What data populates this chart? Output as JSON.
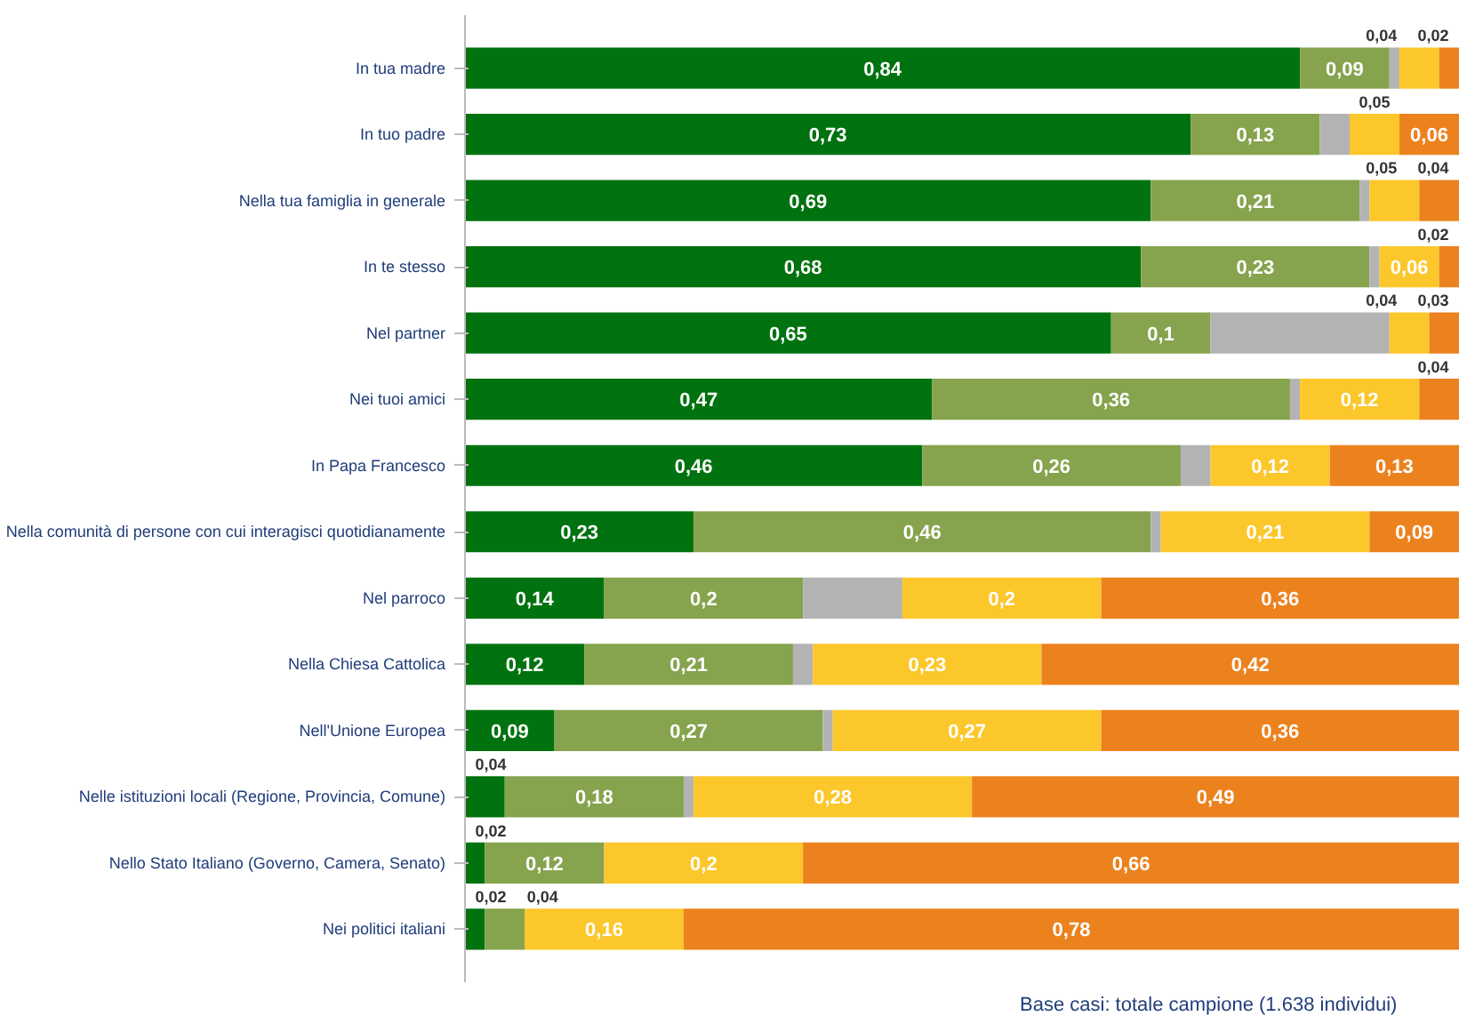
{
  "chart_data": {
    "type": "bar",
    "orientation": "horizontal",
    "stacked": true,
    "categories": [
      "In tua madre",
      "In tuo padre",
      "Nella tua famiglia in generale",
      "In te stesso",
      "Nel partner",
      "Nei tuoi amici",
      "In Papa Francesco",
      "Nella comunità di persone con cui interagisci quotidianamente",
      "Nel parroco",
      "Nella Chiesa Cattolica",
      "Nell'Unione Europea",
      "Nelle istituzioni locali (Regione, Provincia, Comune)",
      "Nello Stato Italiano (Governo, Camera, Senato)",
      "Nei politici italiani"
    ],
    "series": [
      {
        "color": "#00720f",
        "values": [
          0.84,
          0.73,
          0.69,
          0.68,
          0.65,
          0.47,
          0.46,
          0.23,
          0.14,
          0.12,
          0.09,
          0.04,
          0.02,
          0.02
        ],
        "value_labels": [
          "0,84",
          "0,73",
          "0,69",
          "0,68",
          "0,65",
          "0,47",
          "0,46",
          "0,23",
          "0,14",
          "0,12",
          "0,09",
          "0,04",
          "0,02",
          "0,02"
        ]
      },
      {
        "color": "#86a34d",
        "values": [
          0.09,
          0.13,
          0.21,
          0.23,
          0.1,
          0.36,
          0.26,
          0.46,
          0.2,
          0.21,
          0.27,
          0.18,
          0.12,
          0.04
        ],
        "value_labels": [
          "0,09",
          "0,13",
          "0,21",
          "0,23",
          "0,1",
          "0,36",
          "0,26",
          "0,46",
          "0,2",
          "0,21",
          "0,27",
          "0,18",
          "0,12",
          "0,04"
        ]
      },
      {
        "color": "#b3b3b3",
        "values": [
          0.01,
          0.03,
          0.01,
          0.01,
          0.18,
          0.01,
          0.03,
          0.01,
          0.1,
          0.02,
          0.01,
          0.01,
          0,
          0
        ]
      },
      {
        "color": "#fcc72b",
        "values": [
          0.04,
          0.05,
          0.05,
          0.06,
          0.04,
          0.12,
          0.12,
          0.21,
          0.2,
          0.23,
          0.27,
          0.28,
          0.2,
          0.16
        ],
        "value_labels": [
          "0,04",
          "0,05",
          "0,05",
          "0,06",
          "0,04",
          "0,12",
          "0,12",
          "0,21",
          "0,2",
          "0,23",
          "0,27",
          "0,28",
          "0,2",
          "0,16"
        ]
      },
      {
        "color": "#ec821e",
        "values": [
          0.02,
          0.06,
          0.04,
          0.02,
          0.03,
          0.04,
          0.13,
          0.09,
          0.36,
          0.42,
          0.36,
          0.49,
          0.66,
          0.78
        ],
        "value_labels": [
          "0,02",
          "0,06",
          "0,04",
          "0,02",
          "0,03",
          "0,04",
          "0,13",
          "0,09",
          "0,36",
          "0,42",
          "0,36",
          "0,49",
          "0,66",
          "0,78"
        ]
      }
    ],
    "xlim": [
      0,
      1
    ],
    "tick_labels": "y",
    "grid": false,
    "annotations": [
      "Base casi: totale campione (1.638 individui)"
    ]
  }
}
